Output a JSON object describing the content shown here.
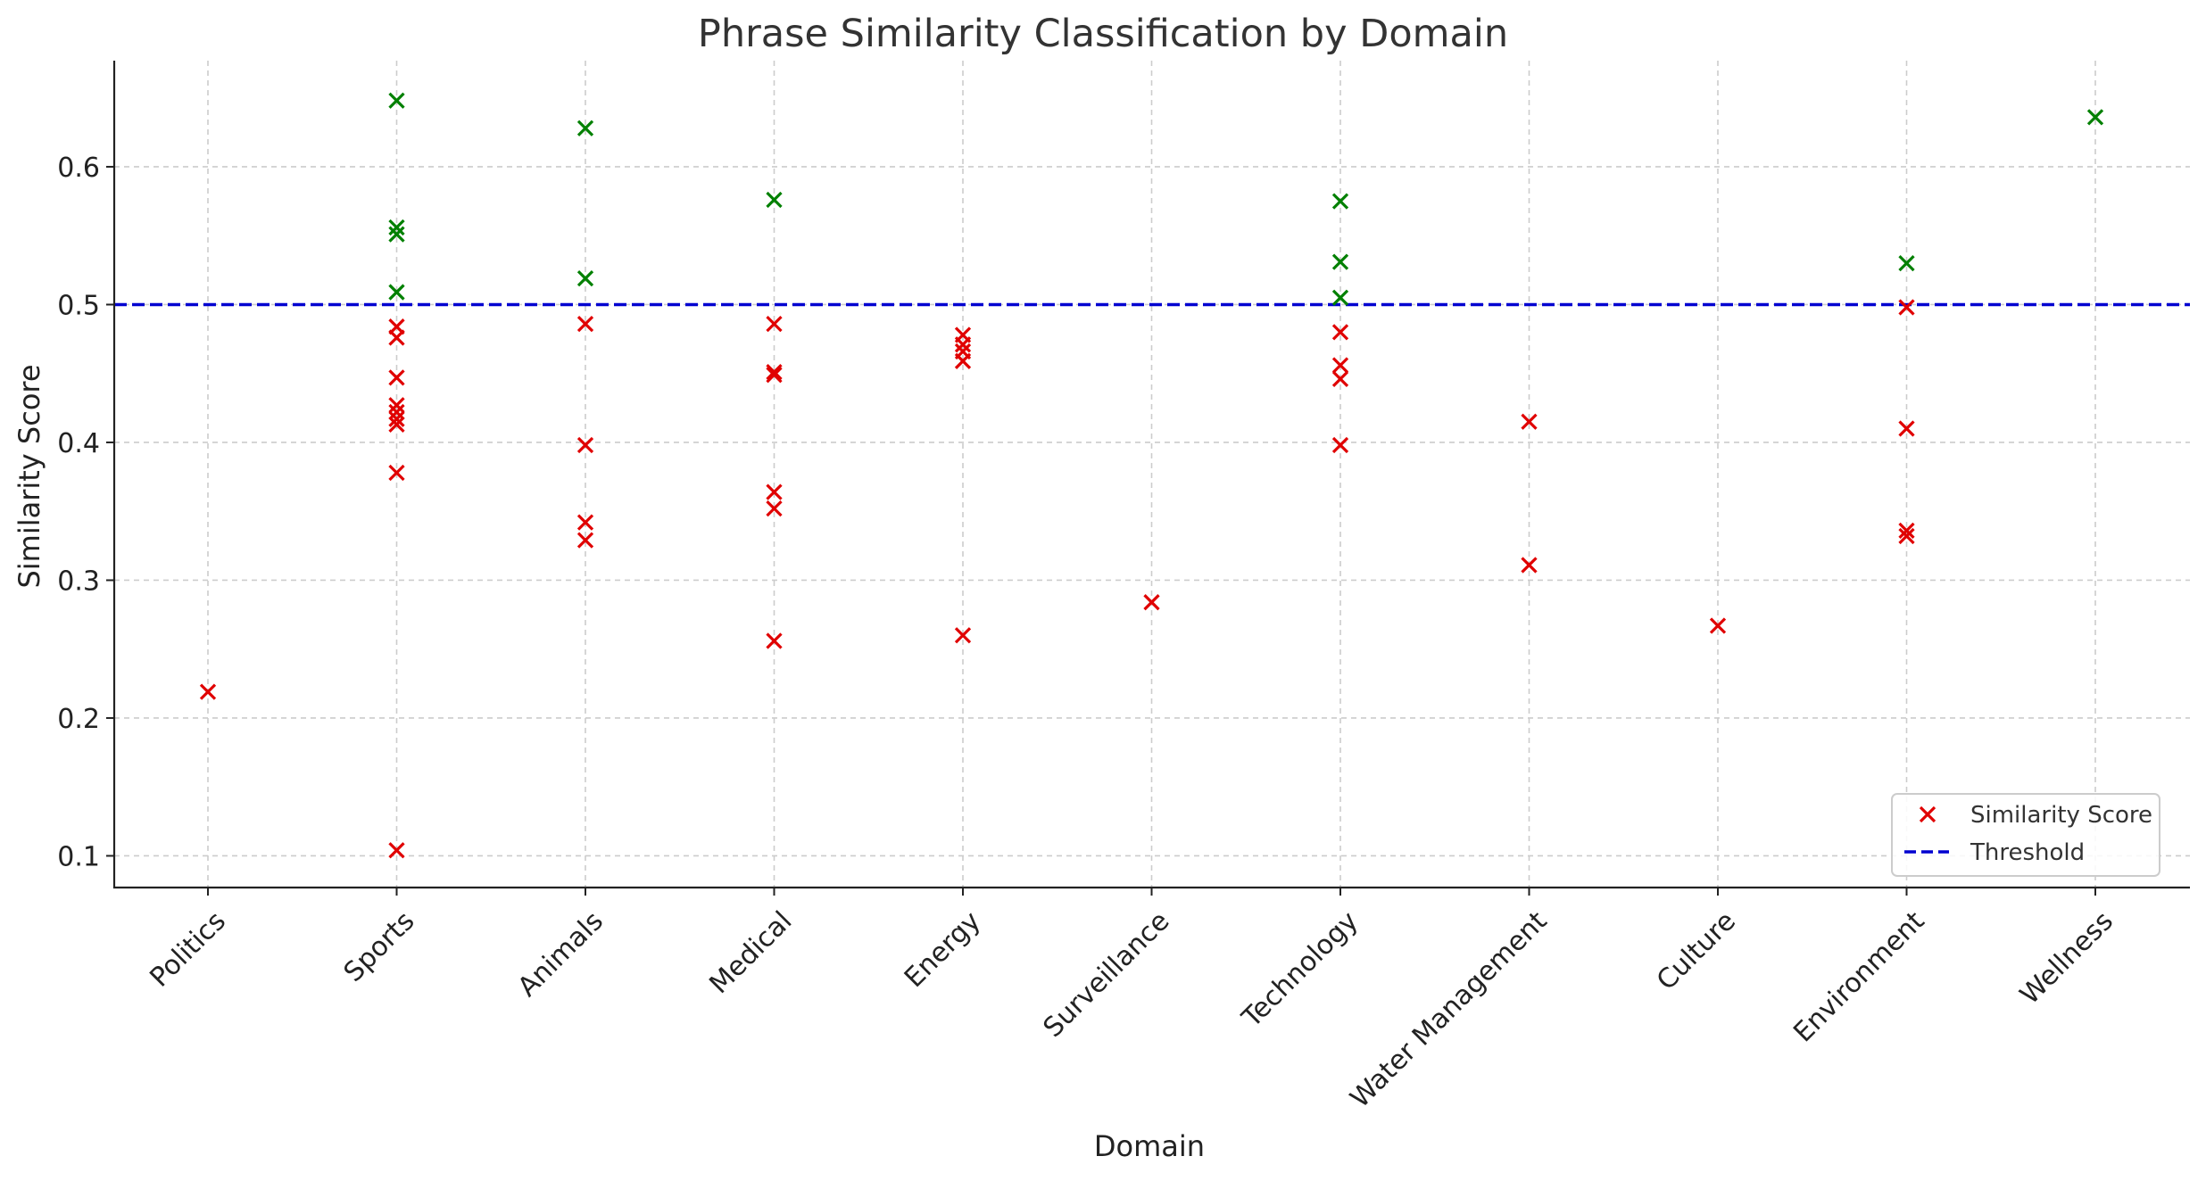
{
  "chart_data": {
    "type": "scatter",
    "title": "Phrase Similarity Classification by Domain",
    "xlabel": "Domain",
    "ylabel": "Similarity Score",
    "categories": [
      "Politics",
      "Sports",
      "Animals",
      "Medical",
      "Energy",
      "Surveillance",
      "Technology",
      "Water Management",
      "Culture",
      "Environment",
      "Wellness"
    ],
    "ylim": [
      0.077,
      0.677
    ],
    "yticks": [
      0.1,
      0.2,
      0.3,
      0.4,
      0.5,
      0.6
    ],
    "ytick_labels": [
      "0.1",
      "0.2",
      "0.3",
      "0.4",
      "0.5",
      "0.6"
    ],
    "threshold": 0.5,
    "grid": true,
    "legend_position": "bottom-right",
    "legend": [
      {
        "label": "Similarity Score",
        "marker": "x",
        "color": "#e00000"
      },
      {
        "label": "Threshold",
        "marker": "dashed-line",
        "color": "#0000d0"
      }
    ],
    "colors": {
      "above_threshold": "#008000",
      "below_threshold": "#e00000",
      "threshold_line": "#0000d0"
    },
    "points": [
      {
        "domain": "Politics",
        "score": 0.219
      },
      {
        "domain": "Sports",
        "score": 0.648
      },
      {
        "domain": "Sports",
        "score": 0.556
      },
      {
        "domain": "Sports",
        "score": 0.551
      },
      {
        "domain": "Sports",
        "score": 0.509
      },
      {
        "domain": "Sports",
        "score": 0.484
      },
      {
        "domain": "Sports",
        "score": 0.476
      },
      {
        "domain": "Sports",
        "score": 0.447
      },
      {
        "domain": "Sports",
        "score": 0.427
      },
      {
        "domain": "Sports",
        "score": 0.422
      },
      {
        "domain": "Sports",
        "score": 0.417
      },
      {
        "domain": "Sports",
        "score": 0.413
      },
      {
        "domain": "Sports",
        "score": 0.378
      },
      {
        "domain": "Sports",
        "score": 0.104
      },
      {
        "domain": "Animals",
        "score": 0.628
      },
      {
        "domain": "Animals",
        "score": 0.519
      },
      {
        "domain": "Animals",
        "score": 0.486
      },
      {
        "domain": "Animals",
        "score": 0.398
      },
      {
        "domain": "Animals",
        "score": 0.342
      },
      {
        "domain": "Animals",
        "score": 0.329
      },
      {
        "domain": "Medical",
        "score": 0.576
      },
      {
        "domain": "Medical",
        "score": 0.486
      },
      {
        "domain": "Medical",
        "score": 0.451
      },
      {
        "domain": "Medical",
        "score": 0.449
      },
      {
        "domain": "Medical",
        "score": 0.364
      },
      {
        "domain": "Medical",
        "score": 0.352
      },
      {
        "domain": "Medical",
        "score": 0.256
      },
      {
        "domain": "Energy",
        "score": 0.478
      },
      {
        "domain": "Energy",
        "score": 0.471
      },
      {
        "domain": "Energy",
        "score": 0.466
      },
      {
        "domain": "Energy",
        "score": 0.459
      },
      {
        "domain": "Energy",
        "score": 0.26
      },
      {
        "domain": "Surveillance",
        "score": 0.284
      },
      {
        "domain": "Technology",
        "score": 0.575
      },
      {
        "domain": "Technology",
        "score": 0.531
      },
      {
        "domain": "Technology",
        "score": 0.505
      },
      {
        "domain": "Technology",
        "score": 0.48
      },
      {
        "domain": "Technology",
        "score": 0.456
      },
      {
        "domain": "Technology",
        "score": 0.446
      },
      {
        "domain": "Technology",
        "score": 0.398
      },
      {
        "domain": "Water Management",
        "score": 0.415
      },
      {
        "domain": "Water Management",
        "score": 0.311
      },
      {
        "domain": "Culture",
        "score": 0.267
      },
      {
        "domain": "Environment",
        "score": 0.53
      },
      {
        "domain": "Environment",
        "score": 0.498
      },
      {
        "domain": "Environment",
        "score": 0.41
      },
      {
        "domain": "Environment",
        "score": 0.336
      },
      {
        "domain": "Environment",
        "score": 0.332
      },
      {
        "domain": "Wellness",
        "score": 0.636
      }
    ]
  }
}
